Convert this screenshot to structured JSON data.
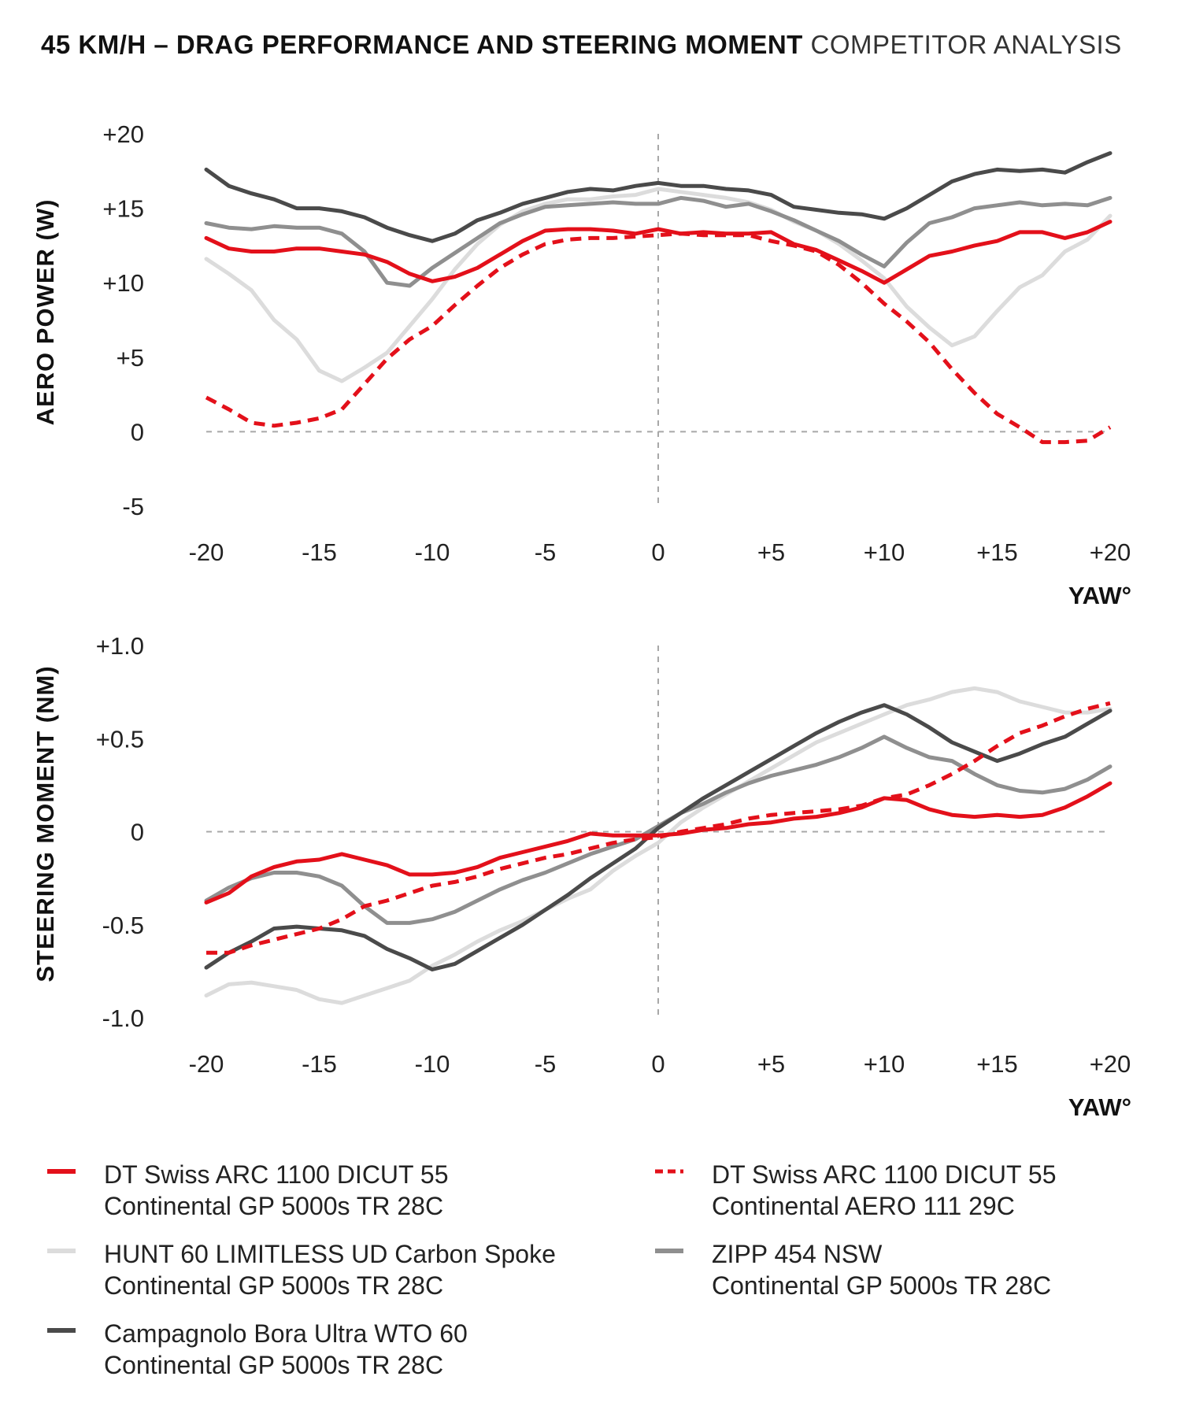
{
  "title": {
    "bold": "45 KM/H – DRAG PERFORMANCE AND STEERING MOMENT",
    "light": "COMPETITOR ANALYSIS"
  },
  "colors": {
    "red": "#e3101a",
    "light_gray": "#dcdcdc",
    "mid_gray": "#8f8f8f",
    "dark_gray": "#4a4a4a",
    "grid": "#a8a8a8"
  },
  "x_ticks": [
    "-20",
    "-15",
    "-10",
    "-5",
    "0",
    "+5",
    "+10",
    "+15",
    "+20"
  ],
  "legend": [
    {
      "line1": "DT Swiss ARC 1100 DICUT 55",
      "line2": "Continental GP 5000s TR 28C",
      "color": "#e3101a",
      "dash": false
    },
    {
      "line1": "DT Swiss ARC 1100 DICUT 55",
      "line2": "Continental AERO 111 29C",
      "color": "#e3101a",
      "dash": true
    },
    {
      "line1": "HUNT 60 LIMITLESS UD Carbon Spoke",
      "line2": "Continental GP 5000s TR 28C",
      "color": "#dcdcdc",
      "dash": false
    },
    {
      "line1": "ZIPP 454 NSW",
      "line2": "Continental GP 5000s TR 28C",
      "color": "#8f8f8f",
      "dash": false
    },
    {
      "line1": "Campagnolo Bora Ultra WTO 60",
      "line2": "Continental GP 5000s TR 28C",
      "color": "#4a4a4a",
      "dash": false
    }
  ],
  "chart_data": [
    {
      "type": "line",
      "title": "45 KM/H – DRAG PERFORMANCE",
      "xlabel": "YAW°",
      "ylabel": "AERO POWER (W)",
      "xlim": [
        -20,
        20
      ],
      "ylim": [
        -5,
        20
      ],
      "y_ticks": [
        "+20",
        "+15",
        "+10",
        "+5",
        "0",
        "-5"
      ],
      "x": [
        -20,
        -19,
        -18,
        -17,
        -16,
        -15,
        -14,
        -13,
        -12,
        -11,
        -10,
        -9,
        -8,
        -7,
        -6,
        -5,
        -4,
        -3,
        -2,
        -1,
        0,
        1,
        2,
        3,
        4,
        5,
        6,
        7,
        8,
        9,
        10,
        11,
        12,
        13,
        14,
        15,
        16,
        17,
        18,
        19,
        20
      ],
      "series": [
        {
          "name": "DT Swiss ARC 1100 DICUT 55 Continental GP 5000s TR 28C",
          "color": "#e3101a",
          "dash": false,
          "values": [
            13.0,
            12.3,
            12.1,
            12.1,
            12.3,
            12.3,
            12.1,
            11.9,
            11.4,
            10.6,
            10.1,
            10.4,
            11.0,
            11.9,
            12.8,
            13.5,
            13.6,
            13.6,
            13.5,
            13.3,
            13.6,
            13.3,
            13.4,
            13.3,
            13.3,
            13.4,
            12.6,
            12.2,
            11.5,
            10.8,
            10.0,
            10.9,
            11.8,
            12.1,
            12.5,
            12.8,
            13.4,
            13.4,
            13.0,
            13.4,
            14.1
          ]
        },
        {
          "name": "DT Swiss ARC 1100 DICUT 55 Continental AERO 111 29C",
          "color": "#e3101a",
          "dash": true,
          "values": [
            2.3,
            1.5,
            0.6,
            0.4,
            0.6,
            0.9,
            1.5,
            3.2,
            4.9,
            6.2,
            7.1,
            8.5,
            9.8,
            11.0,
            11.9,
            12.6,
            12.9,
            13.0,
            13.0,
            13.1,
            13.2,
            13.3,
            13.2,
            13.2,
            13.2,
            12.8,
            12.5,
            12.1,
            11.2,
            10.0,
            8.6,
            7.4,
            6.0,
            4.2,
            2.6,
            1.2,
            0.3,
            -0.7,
            -0.7,
            -0.6,
            0.3
          ]
        },
        {
          "name": "HUNT 60 LIMITLESS UD Carbon Spoke Continental GP 5000s TR 28C",
          "color": "#dcdcdc",
          "dash": false,
          "values": [
            11.6,
            10.6,
            9.5,
            7.5,
            6.2,
            4.1,
            3.4,
            4.3,
            5.3,
            7.1,
            8.9,
            10.9,
            12.6,
            13.9,
            14.8,
            15.3,
            15.6,
            15.6,
            15.8,
            15.9,
            16.3,
            16.1,
            15.9,
            15.7,
            15.4,
            14.9,
            14.1,
            13.5,
            12.6,
            11.5,
            10.3,
            8.4,
            7.0,
            5.8,
            6.4,
            8.1,
            9.7,
            10.5,
            12.1,
            12.9,
            14.5
          ]
        },
        {
          "name": "ZIPP 454 NSW Continental GP 5000s TR 28C",
          "color": "#8f8f8f",
          "dash": false,
          "values": [
            14.0,
            13.7,
            13.6,
            13.8,
            13.7,
            13.7,
            13.3,
            12.1,
            10.0,
            9.8,
            11.0,
            12.0,
            13.0,
            14.0,
            14.6,
            15.1,
            15.2,
            15.3,
            15.4,
            15.3,
            15.3,
            15.7,
            15.5,
            15.1,
            15.3,
            14.8,
            14.2,
            13.5,
            12.8,
            11.9,
            11.1,
            12.7,
            14.0,
            14.4,
            15.0,
            15.2,
            15.4,
            15.2,
            15.3,
            15.2,
            15.7
          ]
        },
        {
          "name": "Campagnolo Bora Ultra WTO 60 Continental GP 5000s TR 28C",
          "color": "#4a4a4a",
          "dash": false,
          "values": [
            17.6,
            16.5,
            16.0,
            15.6,
            15.0,
            15.0,
            14.8,
            14.4,
            13.7,
            13.2,
            12.8,
            13.3,
            14.2,
            14.7,
            15.3,
            15.7,
            16.1,
            16.3,
            16.2,
            16.5,
            16.7,
            16.5,
            16.5,
            16.3,
            16.2,
            15.9,
            15.1,
            14.9,
            14.7,
            14.6,
            14.3,
            15.0,
            15.9,
            16.8,
            17.3,
            17.6,
            17.5,
            17.6,
            17.4,
            18.1,
            18.7
          ]
        }
      ]
    },
    {
      "type": "line",
      "title": "45 KM/H – STEERING MOMENT",
      "xlabel": "YAW°",
      "ylabel": "STEERING MOMENT (NM)",
      "xlim": [
        -20,
        20
      ],
      "ylim": [
        -1.0,
        1.0
      ],
      "y_ticks": [
        "+1.0",
        "+0.5",
        "0",
        "-0.5",
        "-1.0"
      ],
      "x": [
        -20,
        -19,
        -18,
        -17,
        -16,
        -15,
        -14,
        -13,
        -12,
        -11,
        -10,
        -9,
        -8,
        -7,
        -6,
        -5,
        -4,
        -3,
        -2,
        -1,
        0,
        1,
        2,
        3,
        4,
        5,
        6,
        7,
        8,
        9,
        10,
        11,
        12,
        13,
        14,
        15,
        16,
        17,
        18,
        19,
        20
      ],
      "series": [
        {
          "name": "DT Swiss ARC 1100 DICUT 55 Continental GP 5000s TR 28C",
          "color": "#e3101a",
          "dash": false,
          "values": [
            -0.38,
            -0.33,
            -0.24,
            -0.19,
            -0.16,
            -0.15,
            -0.12,
            -0.15,
            -0.18,
            -0.23,
            -0.23,
            -0.22,
            -0.19,
            -0.14,
            -0.11,
            -0.08,
            -0.05,
            -0.01,
            -0.02,
            -0.02,
            -0.02,
            -0.01,
            0.01,
            0.02,
            0.04,
            0.05,
            0.07,
            0.08,
            0.1,
            0.13,
            0.18,
            0.17,
            0.12,
            0.09,
            0.08,
            0.09,
            0.08,
            0.09,
            0.13,
            0.19,
            0.26
          ]
        },
        {
          "name": "DT Swiss ARC 1100 DICUT 55 Continental AERO 111 29C",
          "color": "#e3101a",
          "dash": true,
          "values": [
            -0.65,
            -0.65,
            -0.61,
            -0.58,
            -0.55,
            -0.52,
            -0.47,
            -0.4,
            -0.37,
            -0.33,
            -0.29,
            -0.27,
            -0.24,
            -0.2,
            -0.17,
            -0.14,
            -0.12,
            -0.09,
            -0.06,
            -0.04,
            -0.03,
            0.0,
            0.02,
            0.04,
            0.07,
            0.09,
            0.1,
            0.11,
            0.12,
            0.14,
            0.18,
            0.2,
            0.25,
            0.31,
            0.38,
            0.46,
            0.53,
            0.57,
            0.62,
            0.66,
            0.69
          ]
        },
        {
          "name": "HUNT 60 LIMITLESS UD Carbon Spoke Continental GP 5000s TR 28C",
          "color": "#dcdcdc",
          "dash": false,
          "values": [
            -0.88,
            -0.82,
            -0.81,
            -0.83,
            -0.85,
            -0.9,
            -0.92,
            -0.88,
            -0.84,
            -0.8,
            -0.72,
            -0.66,
            -0.59,
            -0.53,
            -0.48,
            -0.42,
            -0.36,
            -0.31,
            -0.21,
            -0.13,
            -0.06,
            0.05,
            0.13,
            0.2,
            0.27,
            0.34,
            0.41,
            0.48,
            0.53,
            0.58,
            0.63,
            0.68,
            0.71,
            0.75,
            0.77,
            0.75,
            0.7,
            0.67,
            0.64,
            0.64,
            0.66
          ]
        },
        {
          "name": "ZIPP 454 NSW Continental GP 5000s TR 28C",
          "color": "#8f8f8f",
          "dash": false,
          "values": [
            -0.37,
            -0.3,
            -0.25,
            -0.22,
            -0.22,
            -0.24,
            -0.29,
            -0.4,
            -0.49,
            -0.49,
            -0.47,
            -0.43,
            -0.37,
            -0.31,
            -0.26,
            -0.22,
            -0.17,
            -0.12,
            -0.08,
            -0.04,
            0.03,
            0.1,
            0.15,
            0.21,
            0.26,
            0.3,
            0.33,
            0.36,
            0.4,
            0.45,
            0.51,
            0.45,
            0.4,
            0.38,
            0.31,
            0.25,
            0.22,
            0.21,
            0.23,
            0.28,
            0.35
          ]
        },
        {
          "name": "Campagnolo Bora Ultra WTO 60 Continental GP 5000s TR 28C",
          "color": "#4a4a4a",
          "dash": false,
          "values": [
            -0.73,
            -0.65,
            -0.59,
            -0.52,
            -0.51,
            -0.52,
            -0.53,
            -0.56,
            -0.63,
            -0.68,
            -0.74,
            -0.71,
            -0.64,
            -0.57,
            -0.5,
            -0.42,
            -0.34,
            -0.25,
            -0.17,
            -0.09,
            0.02,
            0.1,
            0.18,
            0.25,
            0.32,
            0.39,
            0.46,
            0.53,
            0.59,
            0.64,
            0.68,
            0.63,
            0.56,
            0.48,
            0.43,
            0.38,
            0.42,
            0.47,
            0.51,
            0.58,
            0.65
          ]
        }
      ]
    }
  ]
}
